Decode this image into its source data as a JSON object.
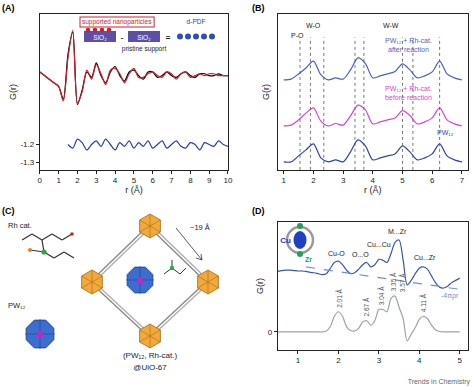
{
  "chart_data": [
    {
      "type": "line",
      "label": "(A)",
      "x_label": "r (Å)",
      "y_label": "G(r)",
      "x": [
        0,
        0.25,
        0.5,
        0.75,
        1,
        1.25,
        1.5,
        1.75,
        2,
        2.25,
        2.5,
        2.75,
        3,
        3.25,
        3.5,
        3.75,
        4,
        4.25,
        4.5,
        4.75,
        5,
        5.25,
        5.5,
        5.75,
        6,
        6.25,
        6.5,
        6.75,
        7,
        7.25,
        7.5,
        7.75,
        8,
        8.25,
        8.5,
        8.75,
        9,
        9.25,
        9.5,
        9.75,
        10
      ],
      "series": [
        {
          "color": "#000000",
          "values": [
            -0.8,
            -0.82,
            -0.84,
            -0.86,
            -0.88,
            -0.95,
            -0.7,
            -0.58,
            -0.98,
            -0.9,
            -0.8,
            -0.83,
            -0.75,
            -0.82,
            -0.86,
            -0.8,
            -0.77,
            -0.82,
            -0.85,
            -0.8,
            -0.79,
            -0.82,
            -0.84,
            -0.8,
            -0.8,
            -0.83,
            -0.82,
            -0.8,
            -0.82,
            -0.83,
            -0.81,
            -0.8,
            -0.82,
            -0.83,
            -0.81,
            -0.81,
            -0.82,
            -0.82,
            -0.81,
            -0.82,
            -0.82
          ]
        },
        {
          "color": "#d0202a",
          "values": [
            -0.8,
            -0.82,
            -0.84,
            -0.86,
            -0.88,
            -0.96,
            -0.72,
            -0.57,
            -0.97,
            -0.91,
            -0.79,
            -0.84,
            -0.76,
            -0.81,
            -0.87,
            -0.79,
            -0.78,
            -0.81,
            -0.86,
            -0.81,
            -0.78,
            -0.83,
            -0.83,
            -0.81,
            -0.8,
            -0.82,
            -0.83,
            -0.8,
            -0.81,
            -0.84,
            -0.81,
            -0.8,
            -0.83,
            -0.82,
            -0.81,
            -0.82,
            -0.81,
            -0.81,
            -0.82,
            -0.82,
            -0.82
          ]
        },
        {
          "color": "#2a40a0",
          "values": [
            null,
            null,
            null,
            null,
            null,
            null,
            -1.2,
            -1.22,
            -1.17,
            -1.19,
            -1.23,
            -1.2,
            -1.18,
            -1.21,
            -1.17,
            -1.2,
            -1.23,
            -1.19,
            -1.21,
            -1.18,
            -1.22,
            -1.19,
            -1.21,
            -1.18,
            -1.22,
            -1.2,
            -1.18,
            -1.22,
            -1.2,
            -1.18,
            -1.21,
            -1.22,
            -1.19,
            -1.2,
            -1.23,
            -1.19,
            -1.2,
            -1.21,
            -1.18,
            -1.2,
            -1.21
          ]
        }
      ],
      "xlim": [
        0,
        10
      ],
      "xticks": [
        0,
        1,
        2,
        3,
        4,
        5,
        6,
        7,
        8,
        9,
        10
      ],
      "ylim": [
        -1.34,
        -0.48
      ],
      "yticks": [
        -1.3,
        -1.2
      ],
      "grid": false,
      "inset": {
        "sample": "supported nanoparticles",
        "sample_support": "SiO₂",
        "minus": "-",
        "support": "SiO₂",
        "support_label": "pristine support",
        "equals": "=",
        "result": "d-PDF"
      }
    },
    {
      "type": "line",
      "label": "(B)",
      "x_label": "r (Å)",
      "y_label": "G(r)",
      "x": [
        1,
        1.25,
        1.5,
        1.75,
        2,
        2.25,
        2.5,
        2.75,
        3,
        3.25,
        3.5,
        3.75,
        4,
        4.25,
        4.5,
        4.75,
        5,
        5.25,
        5.5,
        5.75,
        6,
        6.25,
        6.5,
        6.75,
        7
      ],
      "series": [
        {
          "color": "#2e45a8",
          "values": [
            0.2,
            0.2,
            0.35,
            0.5,
            0.65,
            0.3,
            0.2,
            0.25,
            0.2,
            0.45,
            0.75,
            0.6,
            0.25,
            0.3,
            0.35,
            0.4,
            0.6,
            0.45,
            0.25,
            0.3,
            0.4,
            0.65,
            0.35,
            0.25,
            0.2
          ]
        },
        {
          "color": "#d946c8",
          "values": [
            1.1,
            1.12,
            1.25,
            1.42,
            1.55,
            1.22,
            1.1,
            1.16,
            1.12,
            1.35,
            1.62,
            1.5,
            1.15,
            1.2,
            1.25,
            1.3,
            1.48,
            1.36,
            1.15,
            1.2,
            1.3,
            1.55,
            1.25,
            1.15,
            1.1
          ]
        },
        {
          "color": "#4b5fc4",
          "values": [
            2.25,
            2.27,
            2.4,
            2.55,
            2.72,
            2.38,
            2.25,
            2.3,
            2.27,
            2.5,
            2.8,
            2.66,
            2.3,
            2.35,
            2.4,
            2.46,
            2.65,
            2.5,
            2.3,
            2.35,
            2.45,
            2.72,
            2.4,
            2.3,
            2.25
          ]
        }
      ],
      "xlim": [
        0.8,
        7.2
      ],
      "xticks": [
        1,
        2,
        3,
        4,
        5,
        6,
        7
      ],
      "ylim": [
        0,
        3.9
      ],
      "yticks": [],
      "tick_labels": "x",
      "grid": false,
      "vlines": [
        1.55,
        1.9,
        2.35,
        3.4,
        3.7,
        5.0,
        5.35,
        6.25
      ],
      "annotations": [
        {
          "text": "P-O",
          "x": 1.45,
          "y": 3.35
        },
        {
          "text": "W-O",
          "x": 2.0,
          "y": 3.62
        },
        {
          "text": "W-W",
          "x": 4.6,
          "y": 3.62
        },
        {
          "text": "PW₁₂ + Rh-cat.\nafter reaction",
          "x": 5.2,
          "y": 3.12,
          "color": "#4b5fc4"
        },
        {
          "text": "PW₁₂ + Rh-cat.\nbefore reaction",
          "x": 5.2,
          "y": 1.92,
          "color": "#d946c8"
        },
        {
          "text": "PW₁₂",
          "x": 6.45,
          "y": 0.93,
          "color": "#2e45a8"
        }
      ]
    },
    {
      "type": "line",
      "label": "(D)",
      "y_label": "G(r)",
      "x": [
        0.5,
        0.6,
        0.7,
        0.8,
        0.9,
        1.0,
        1.1,
        1.2,
        1.3,
        1.4,
        1.5,
        1.6,
        1.7,
        1.8,
        1.9,
        2.0,
        2.1,
        2.2,
        2.3,
        2.4,
        2.5,
        2.6,
        2.7,
        2.8,
        2.9,
        3.0,
        3.1,
        3.2,
        3.3,
        3.4,
        3.5,
        3.6,
        3.7,
        3.8,
        3.9,
        4.0,
        4.1,
        4.2,
        4.3,
        4.4,
        4.5,
        4.6,
        4.7,
        4.8,
        4.9,
        5.0
      ],
      "series": [
        {
          "color": "#3d55a8",
          "values": [
            1.35,
            1.37,
            1.38,
            1.38,
            1.37,
            1.36,
            1.36,
            1.35,
            1.33,
            1.32,
            1.3,
            1.28,
            1.3,
            1.42,
            1.55,
            1.58,
            1.5,
            1.38,
            1.3,
            1.32,
            1.4,
            1.5,
            1.55,
            1.45,
            1.5,
            1.62,
            1.6,
            1.55,
            1.75,
            2.0,
            2.05,
            1.6,
            1.05,
            1.15,
            1.3,
            1.42,
            1.45,
            1.4,
            1.25,
            1.1,
            1.0,
            0.98,
            1.02,
            1.1,
            1.15,
            1.2
          ]
        },
        {
          "color": "#9aa3ad",
          "values": [
            0,
            0,
            0,
            0,
            0,
            0,
            0,
            0,
            0,
            0,
            0,
            0,
            0.02,
            0.12,
            0.35,
            0.45,
            0.35,
            0.12,
            0.03,
            0.02,
            0.08,
            0.22,
            0.25,
            0.15,
            0.25,
            0.5,
            0.5,
            0.45,
            0.75,
            0.8,
            0.55,
            0.3,
            -0.2,
            -0.05,
            0.1,
            0.28,
            0.35,
            0.3,
            0.15,
            0.05,
            0.01,
            0,
            0,
            0,
            0,
            0
          ]
        },
        {
          "color": "#6f8fd0",
          "line_style": "dashed",
          "x": [
            1.2,
            5.0
          ],
          "values": [
            1.45,
            0.95
          ]
        }
      ],
      "xlim": [
        0.5,
        5.2
      ],
      "xticks": [
        1,
        2,
        3,
        4,
        5
      ],
      "ylim": [
        -0.4,
        2.45
      ],
      "yticks": [
        0
      ],
      "grid": false,
      "annotations": [
        {
          "text": "Cu-O",
          "x": 1.95,
          "y": 1.75
        },
        {
          "text": "O...O",
          "x": 2.55,
          "y": 1.72
        },
        {
          "text": "Cu...Cu",
          "x": 3.0,
          "y": 1.95
        },
        {
          "text": "M...Zr",
          "x": 3.45,
          "y": 2.25
        },
        {
          "text": "Cu...Zr",
          "x": 4.15,
          "y": 1.65
        },
        {
          "text": "-4πρr",
          "x": 4.75,
          "y": 0.8,
          "color": "#6f8fd0"
        }
      ],
      "peak_labels": [
        {
          "text": "2.01 Å",
          "x": 2.01,
          "y": 0.5
        },
        {
          "text": "2.67 Å",
          "x": 2.67,
          "y": 0.3
        },
        {
          "text": "3.04 Å",
          "x": 3.04,
          "y": 0.55
        },
        {
          "text": "3.35 Å",
          "x": 3.35,
          "y": 0.85
        },
        {
          "text": "3.57 Å",
          "x": 3.57,
          "y": 0.85
        },
        {
          "text": "4.11 Å",
          "x": 4.11,
          "y": 0.4
        }
      ],
      "inset": {
        "center": "Cu",
        "ends": "Zr"
      }
    }
  ],
  "panel_c": {
    "label": "(C)",
    "rh_label": "Rh cat.",
    "pw_label": "PW₁₂",
    "size": "~19 Å",
    "caption": [
      "(PW₁₂, Rh-cat.)",
      "@UiO-67"
    ]
  },
  "source": "Trends in Chemistry"
}
